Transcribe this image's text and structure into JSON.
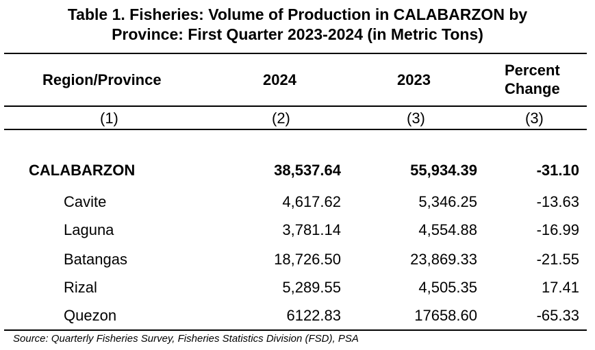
{
  "title": {
    "line1": "Table 1. Fisheries: Volume of Production in CALABARZON by",
    "line2": "Province: First Quarter 2023-2024 (in Metric Tons)"
  },
  "table": {
    "headers": {
      "region": "Region/Province",
      "y2024": "2024",
      "y2023": "2023",
      "pct_line1": "Percent",
      "pct_line2": "Change"
    },
    "column_numbers": [
      "(1)",
      "(2)",
      "(3)",
      "(3)"
    ],
    "rows": [
      {
        "name": "CALABARZON",
        "v2024": "38,537.64",
        "v2023": "55,934.39",
        "pct": "-31.10"
      },
      {
        "name": "Cavite",
        "v2024": "4,617.62",
        "v2023": "5,346.25",
        "pct": "-13.63"
      },
      {
        "name": "Laguna",
        "v2024": "3,781.14",
        "v2023": "4,554.88",
        "pct": "-16.99"
      },
      {
        "name": "Batangas",
        "v2024": "18,726.50",
        "v2023": "23,869.33",
        "pct": "-21.55"
      },
      {
        "name": "Rizal",
        "v2024": "5,289.55",
        "v2023": "4,505.35",
        "pct": "17.41"
      },
      {
        "name": "Quezon",
        "v2024": "6122.83",
        "v2023": "17658.60",
        "pct": "-65.33"
      }
    ]
  },
  "source": "Source: Quarterly Fisheries Survey, Fisheries Statistics Division (FSD), PSA"
}
